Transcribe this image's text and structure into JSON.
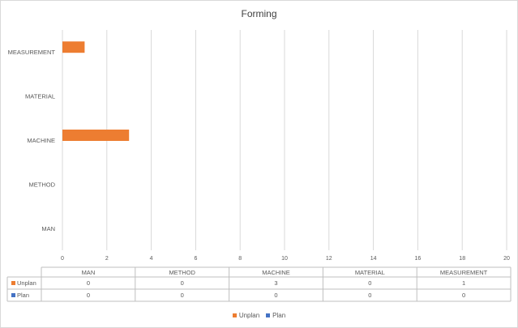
{
  "chart_data": {
    "type": "bar",
    "orientation": "horizontal",
    "title": "Forming",
    "categories": [
      "MAN",
      "METHOD",
      "MACHINE",
      "MATERIAL",
      "MEASUREMENT"
    ],
    "series": [
      {
        "name": "Unplan",
        "values": [
          0,
          0,
          3,
          0,
          1
        ],
        "color": "#ED7D31"
      },
      {
        "name": "Plan",
        "values": [
          0,
          0,
          0,
          0,
          0
        ],
        "color": "#4472C4"
      }
    ],
    "xlim": [
      0,
      20
    ],
    "xticks": [
      "0",
      "2",
      "4",
      "6",
      "8",
      "10",
      "12",
      "14",
      "16",
      "18",
      "20"
    ],
    "grid": true,
    "legend_position": "bottom",
    "data_table": true,
    "xlabel": "",
    "ylabel": ""
  }
}
